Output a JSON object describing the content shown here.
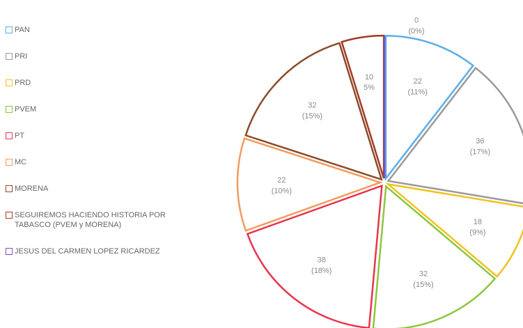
{
  "chart_data": {
    "type": "pie",
    "categories": [
      "PAN",
      "PRI",
      "PRD",
      "PVEM",
      "PT",
      "MC",
      "MORENA",
      "SEGUIREMOS HACIENDO HISTORIA POR TABASCO (PVEM y MORENA)",
      "JESUS DEL CARMEN LOPEZ RICARDEZ"
    ],
    "values": [
      22,
      36,
      18,
      32,
      38,
      22,
      32,
      10,
      0
    ],
    "value_labels": [
      "22\n(11%)",
      "36\n(17%)",
      "18\n(9%)",
      "32\n(15%)",
      "38\n(18%)",
      "22\n(10%)",
      "32\n(15%)",
      "10\n5%",
      "0\n(0%)"
    ],
    "colors": [
      "#5aaee8",
      "#9a9a9a",
      "#f2c21b",
      "#8cc63f",
      "#e8344e",
      "#f39a5a",
      "#8b4a2a",
      "#a23a22",
      "#7b4fc9"
    ],
    "legend": "left"
  }
}
